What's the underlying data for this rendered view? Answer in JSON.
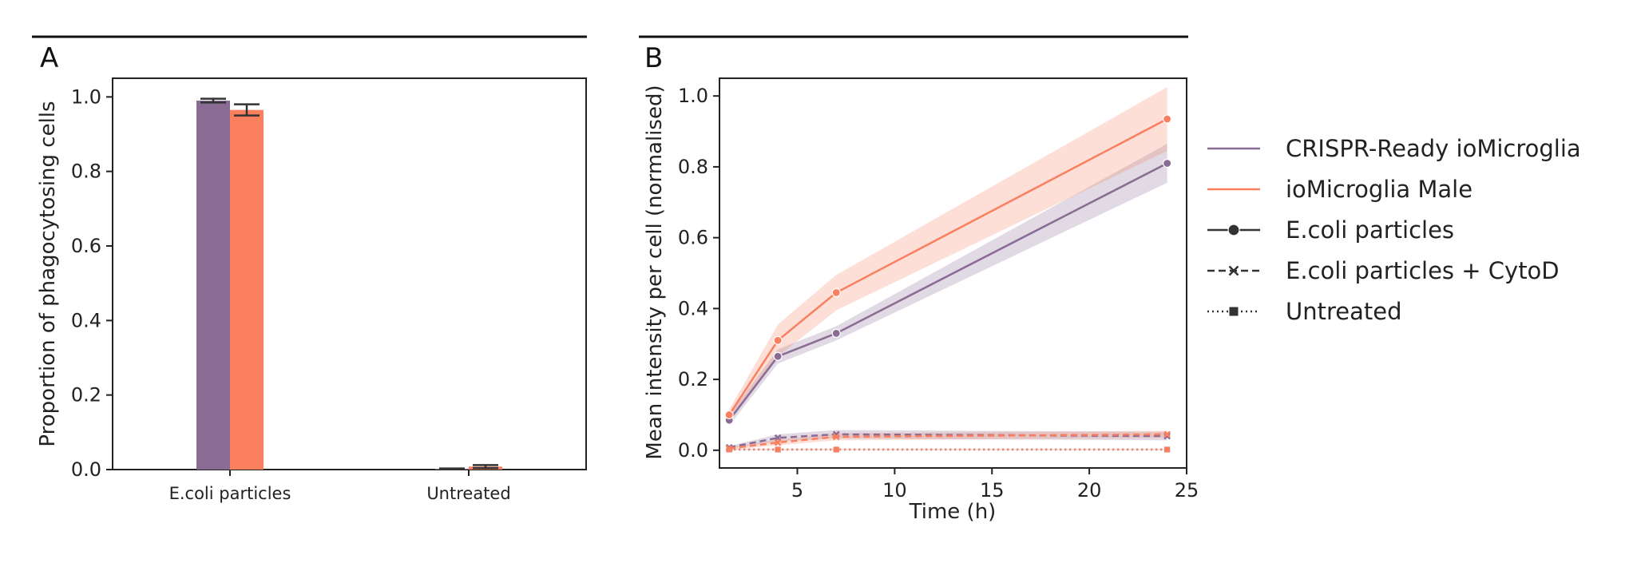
{
  "colors": {
    "crispr": "#896b94",
    "male": "#f97f5f",
    "dark": "#333333",
    "crispr_band": "#896b94",
    "male_band": "#f97f5f"
  },
  "chart_data": [
    {
      "panel": "A",
      "type": "bar",
      "title": "",
      "xlabel": "",
      "ylabel": "Proportion of phagocytosing cells",
      "ylim": [
        0,
        1.05
      ],
      "yticks": [
        "0.0",
        "0.2",
        "0.4",
        "0.6",
        "0.8",
        "1.0"
      ],
      "categories": [
        "E.coli particles",
        "Untreated"
      ],
      "series": [
        {
          "name": "CRISPR-Ready ioMicroglia",
          "values": [
            0.99,
            0.002
          ],
          "errors": [
            0.005,
            0.001
          ]
        },
        {
          "name": "ioMicroglia Male",
          "values": [
            0.965,
            0.008
          ],
          "errors": [
            0.015,
            0.004
          ]
        }
      ],
      "grid": false
    },
    {
      "panel": "B",
      "type": "line",
      "title": "",
      "xlabel": "Time (h)",
      "ylabel": "Mean intensity per cell (normalised)",
      "xlim": [
        1,
        25
      ],
      "ylim": [
        -0.05,
        1.05
      ],
      "xticks": [
        "5",
        "10",
        "15",
        "20",
        "25"
      ],
      "yticks": [
        "0.0",
        "0.2",
        "0.4",
        "0.6",
        "0.8",
        "1.0"
      ],
      "x": [
        1.5,
        4,
        7,
        24
      ],
      "series": [
        {
          "name": "CRISPR-Ready ioMicroglia",
          "condition": "E.coli particles",
          "values": [
            0.085,
            0.265,
            0.33,
            0.81
          ],
          "band": [
            0.015,
            0.02,
            0.02,
            0.055
          ]
        },
        {
          "name": "ioMicroglia Male",
          "condition": "E.coli particles",
          "values": [
            0.1,
            0.31,
            0.445,
            0.935
          ],
          "band": [
            0.015,
            0.045,
            0.05,
            0.09
          ]
        },
        {
          "name": "CRISPR-Ready ioMicroglia",
          "condition": "E.coli particles + CytoD",
          "values": [
            0.008,
            0.035,
            0.045,
            0.04
          ],
          "band": [
            0.004,
            0.01,
            0.012,
            0.012
          ]
        },
        {
          "name": "ioMicroglia Male",
          "condition": "E.coli particles + CytoD",
          "values": [
            0.005,
            0.022,
            0.038,
            0.045
          ],
          "band": [
            0.004,
            0.008,
            0.01,
            0.01
          ]
        },
        {
          "name": "CRISPR-Ready ioMicroglia",
          "condition": "Untreated",
          "values": [
            0.002,
            0.002,
            0.002,
            0.002
          ],
          "band": [
            0.001,
            0.001,
            0.001,
            0.001
          ]
        },
        {
          "name": "ioMicroglia Male",
          "condition": "Untreated",
          "values": [
            0.002,
            0.002,
            0.002,
            0.002
          ],
          "band": [
            0.001,
            0.001,
            0.001,
            0.001
          ]
        }
      ],
      "legend": {
        "position": "right",
        "entries": [
          {
            "label": "CRISPR-Ready ioMicroglia",
            "kind": "color",
            "color_key": "crispr"
          },
          {
            "label": "ioMicroglia Male",
            "kind": "color",
            "color_key": "male"
          },
          {
            "label": "E.coli particles",
            "kind": "style",
            "style": "solid",
            "marker": "circle"
          },
          {
            "label": "E.coli particles + CytoD",
            "kind": "style",
            "style": "dashed",
            "marker": "x"
          },
          {
            "label": "Untreated",
            "kind": "style",
            "style": "dotted",
            "marker": "square"
          }
        ]
      },
      "grid": false
    }
  ]
}
